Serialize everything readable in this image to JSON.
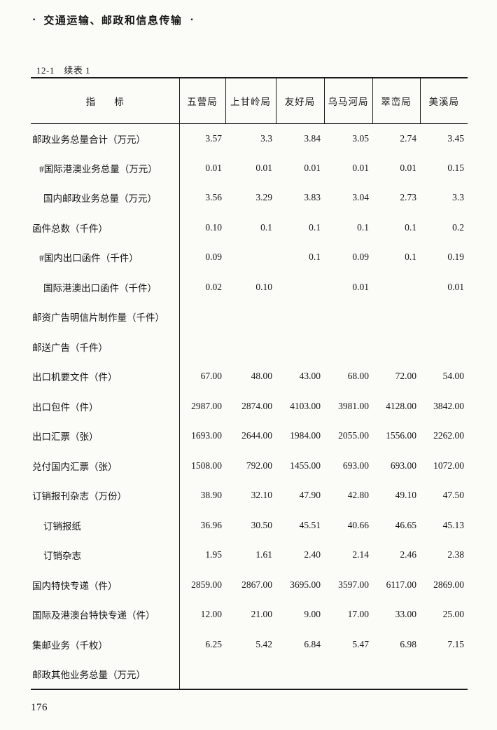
{
  "page": {
    "header_bullet": "·",
    "header_title": "交通运输、邮政和信息传输",
    "table_caption": "12-1　续表 1",
    "page_number": "176"
  },
  "table": {
    "indicator_header": "指　　标",
    "columns": [
      "五营局",
      "上甘岭局",
      "友好局",
      "乌马河局",
      "翠峦局",
      "美溪局"
    ],
    "rows": [
      {
        "label": "邮政业务总量合计（万元）",
        "indent": 0,
        "values": [
          "3.57",
          "3.3",
          "3.84",
          "3.05",
          "2.74",
          "3.45"
        ]
      },
      {
        "label": "#国际港澳业务总量（万元）",
        "indent": 1,
        "values": [
          "0.01",
          "0.01",
          "0.01",
          "0.01",
          "0.01",
          "0.15"
        ]
      },
      {
        "label": "国内邮政业务总量（万元）",
        "indent": 2,
        "values": [
          "3.56",
          "3.29",
          "3.83",
          "3.04",
          "2.73",
          "3.3"
        ]
      },
      {
        "label": "函件总数（千件）",
        "indent": 0,
        "values": [
          "0.10",
          "0.1",
          "0.1",
          "0.1",
          "0.1",
          "0.2"
        ]
      },
      {
        "label": "#国内出口函件（千件）",
        "indent": 1,
        "values": [
          "0.09",
          "",
          "0.1",
          "0.09",
          "0.1",
          "0.19"
        ]
      },
      {
        "label": "国际港澳出口函件（千件）",
        "indent": 2,
        "values": [
          "0.02",
          "0.10",
          "",
          "0.01",
          "",
          "0.01"
        ]
      },
      {
        "label": "邮资广告明信片制作量（千件）",
        "indent": 0,
        "values": [
          "",
          "",
          "",
          "",
          "",
          ""
        ]
      },
      {
        "label": "邮送广告（千件）",
        "indent": 0,
        "values": [
          "",
          "",
          "",
          "",
          "",
          ""
        ]
      },
      {
        "label": "出口机要文件（件）",
        "indent": 0,
        "values": [
          "67.00",
          "48.00",
          "43.00",
          "68.00",
          "72.00",
          "54.00"
        ]
      },
      {
        "label": "出口包件（件）",
        "indent": 0,
        "values": [
          "2987.00",
          "2874.00",
          "4103.00",
          "3981.00",
          "4128.00",
          "3842.00"
        ]
      },
      {
        "label": "出口汇票（张）",
        "indent": 0,
        "values": [
          "1693.00",
          "2644.00",
          "1984.00",
          "2055.00",
          "1556.00",
          "2262.00"
        ]
      },
      {
        "label": "兑付国内汇票（张）",
        "indent": 0,
        "values": [
          "1508.00",
          "792.00",
          "1455.00",
          "693.00",
          "693.00",
          "1072.00"
        ]
      },
      {
        "label": "订销报刊杂志（万份）",
        "indent": 0,
        "values": [
          "38.90",
          "32.10",
          "47.90",
          "42.80",
          "49.10",
          "47.50"
        ]
      },
      {
        "label": "订销报纸",
        "indent": 2,
        "values": [
          "36.96",
          "30.50",
          "45.51",
          "40.66",
          "46.65",
          "45.13"
        ]
      },
      {
        "label": "订销杂志",
        "indent": 2,
        "values": [
          "1.95",
          "1.61",
          "2.40",
          "2.14",
          "2.46",
          "2.38"
        ]
      },
      {
        "label": "国内特快专递（件）",
        "indent": 0,
        "values": [
          "2859.00",
          "2867.00",
          "3695.00",
          "3597.00",
          "6117.00",
          "2869.00"
        ]
      },
      {
        "label": "国际及港澳台特快专递（件）",
        "indent": 0,
        "values": [
          "12.00",
          "21.00",
          "9.00",
          "17.00",
          "33.00",
          "25.00"
        ]
      },
      {
        "label": "集邮业务（千枚）",
        "indent": 0,
        "values": [
          "6.25",
          "5.42",
          "6.84",
          "5.47",
          "6.98",
          "7.15"
        ]
      },
      {
        "label": "邮政其他业务总量（万元）",
        "indent": 0,
        "values": [
          "",
          "",
          "",
          "",
          "",
          ""
        ]
      }
    ]
  }
}
